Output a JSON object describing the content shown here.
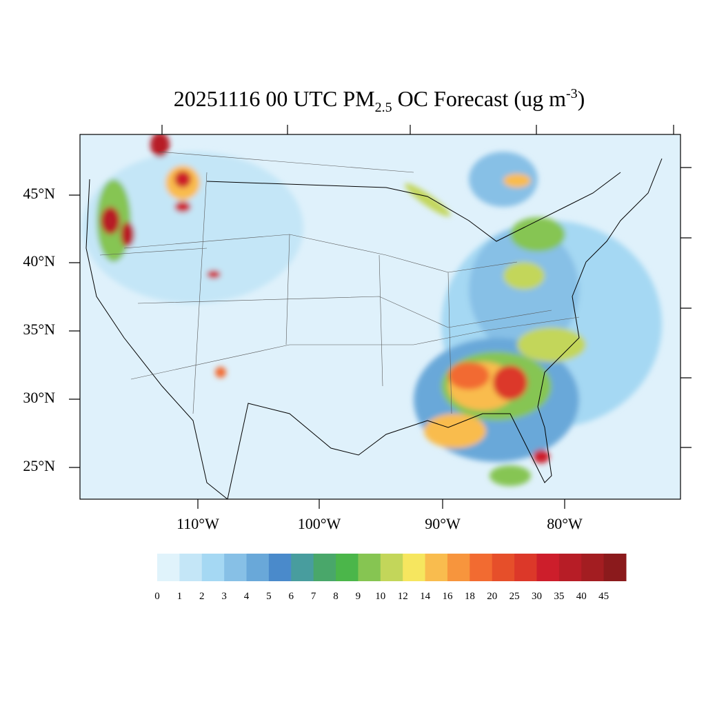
{
  "title": {
    "prefix": "20251116 00 UTC PM",
    "sub": "2.5",
    "mid": " OC Forecast (ug m",
    "sup": "-3",
    "suffix": ")"
  },
  "lat_labels": [
    "45°N",
    "40°N",
    "35°N",
    "30°N",
    "25°N"
  ],
  "lon_labels": [
    "110°W",
    "100°W",
    "90°W",
    "80°W"
  ],
  "colorbar": {
    "levels": [
      0,
      1,
      2,
      3,
      4,
      5,
      6,
      7,
      8,
      9,
      10,
      12,
      14,
      16,
      18,
      20,
      25,
      30,
      35,
      40,
      45
    ],
    "colors": [
      "#e0f3fb",
      "#c4e6f7",
      "#a5d8f3",
      "#87c0e6",
      "#69a8d9",
      "#4a8acb",
      "#489d9e",
      "#49a76a",
      "#4bb64a",
      "#86c552",
      "#c3d65a",
      "#f6e65f",
      "#f9bc4e",
      "#f7953d",
      "#f26b31",
      "#e64f2a",
      "#dc3829",
      "#cd1e2b",
      "#b71d26",
      "#a31d21",
      "#8b1a1c"
    ]
  }
}
